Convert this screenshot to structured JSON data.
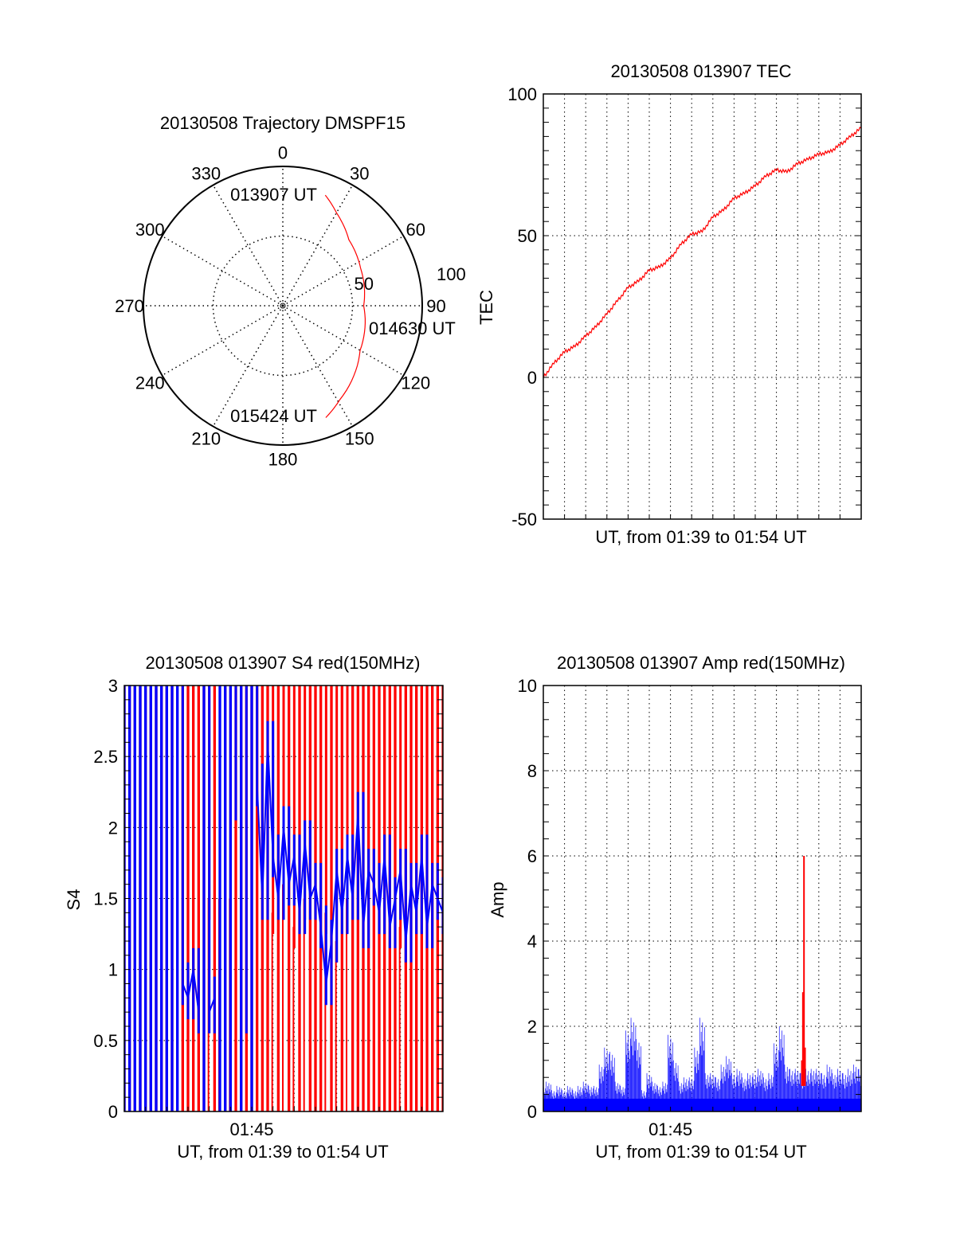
{
  "colors": {
    "red": "#ff0000",
    "blue": "#0000ff",
    "axis": "#000000"
  },
  "chart_data": [
    {
      "type": "polar",
      "title": "20130508 Trajectory DMSPF15",
      "angle_labels": [
        "0",
        "30",
        "60",
        "90",
        "120",
        "150",
        "180",
        "210",
        "240",
        "270",
        "300",
        "330"
      ],
      "angles": [
        0,
        30,
        60,
        90,
        120,
        150,
        180,
        210,
        240,
        270,
        300,
        330
      ],
      "radial_labels": [
        "50",
        "100"
      ],
      "radial_values": [
        50,
        100
      ],
      "rlim": [
        0,
        100
      ],
      "trajectory": {
        "azimuth": [
          21,
          30,
          45,
          64,
          90,
          120,
          149,
          159
        ],
        "radius": [
          85,
          77,
          67,
          62,
          58,
          64,
          79,
          86
        ]
      },
      "annotations": [
        "013907 UT",
        "014630 UT",
        "015424 UT"
      ]
    },
    {
      "type": "line",
      "title": "20130508 013907 TEC",
      "xlabel": "UT, from 01:39 to 01:54 UT",
      "ylabel": "TEC",
      "xlim": [
        0,
        15
      ],
      "ylim": [
        -50,
        100
      ],
      "yticks": [
        "-50",
        "0",
        "50",
        "100"
      ],
      "ytick_values": [
        -50,
        0,
        50,
        100
      ],
      "grid": true,
      "x_minutes": [
        0,
        0.5,
        1,
        1.5,
        2,
        2.5,
        3,
        3.5,
        4,
        4.5,
        5,
        5.5,
        6,
        6.5,
        7,
        7.5,
        8,
        8.5,
        9,
        9.5,
        10,
        10.5,
        11,
        11.5,
        12,
        12.5,
        13,
        13.5,
        14,
        14.5,
        15
      ],
      "series": [
        {
          "name": "TEC",
          "color": "#ff0000",
          "values": [
            0,
            5,
            9,
            11,
            14.6,
            18,
            22.4,
            27,
            31.7,
            34,
            37.8,
            39,
            42,
            47,
            50.5,
            51.5,
            56.6,
            59,
            63.2,
            65,
            67.6,
            71,
            73.2,
            72.5,
            75.4,
            77,
            78.7,
            79.5,
            82,
            85,
            88
          ]
        }
      ]
    },
    {
      "type": "line",
      "title": "20130508 013907 S4 red(150MHz)",
      "xlabel": "UT, from 01:39 to 01:54 UT",
      "ylabel": "S4",
      "xlim": [
        0,
        15
      ],
      "ylim": [
        0,
        3
      ],
      "xticks": [
        "01:45"
      ],
      "xtick_values": [
        6
      ],
      "yticks": [
        "0",
        "0.5",
        "1",
        "1.5",
        "2",
        "2.5",
        "3"
      ],
      "ytick_values": [
        0,
        0.5,
        1,
        1.5,
        2,
        2.5,
        3
      ],
      "grid": true,
      "sample_step_minutes": 0.25,
      "series": [
        {
          "name": "red",
          "color": "#ff0000",
          "values": [
            3.5,
            0,
            3.5,
            0,
            3.5,
            0,
            3.5,
            0,
            3.5,
            0,
            0,
            3.5,
            0,
            3.5,
            0,
            3.5,
            1.5,
            3.5,
            1.5,
            3.5,
            1.5,
            3.5,
            0,
            3.5,
            0,
            3.5,
            0,
            3.5,
            1.4,
            3.5,
            1.6,
            3.5,
            1.3,
            3.5,
            1.5,
            3.5,
            0,
            3.5,
            1.4,
            3.5,
            1.2,
            3.5,
            1.5,
            3.5,
            0,
            3.5,
            0,
            3.5,
            0,
            3.5,
            0,
            3.5,
            1.3,
            3.5,
            0,
            3.5,
            0,
            3.5,
            0,
            3.5,
            0
          ]
        },
        {
          "name": "blue",
          "color": "#0000ff",
          "values": [
            3.5,
            0,
            3.5,
            0,
            3.5,
            0,
            3.5,
            0,
            3.5,
            0,
            3.5,
            0.9,
            0.8,
            1.0,
            0.7,
            3.5,
            0.7,
            0.8,
            3.5,
            0,
            3.5,
            2.2,
            3.5,
            0.7,
            3.5,
            2.3,
            1.5,
            2.6,
            1.8,
            1.5,
            2.0,
            1.6,
            1.8,
            1.4,
            1.9,
            1.5,
            1.6,
            1.3,
            0.9,
            1.2,
            1.7,
            1.4,
            1.8,
            1.5,
            2.1,
            1.3,
            1.7,
            1.6,
            1.4,
            1.8,
            1.3,
            1.5,
            1.7,
            1.2,
            1.6,
            1.4,
            1.8,
            1.3,
            1.6,
            1.5,
            1.4
          ]
        }
      ]
    },
    {
      "type": "bar",
      "title": "20130508 013907 Amp red(150MHz)",
      "xlabel": "UT, from 01:39 to 01:54 UT",
      "ylabel": "Amp",
      "xlim": [
        0,
        15
      ],
      "ylim": [
        0,
        10
      ],
      "xticks": [
        "01:45"
      ],
      "xtick_values": [
        6
      ],
      "yticks": [
        "0",
        "2",
        "4",
        "6",
        "8",
        "10"
      ],
      "ytick_values": [
        0,
        2,
        4,
        6,
        8,
        10
      ],
      "grid": true,
      "sample_step_minutes": 0.25,
      "series": [
        {
          "name": "blue",
          "color": "#0000ff",
          "values": [
            0.6,
            0.7,
            0.5,
            0.6,
            0.5,
            0.6,
            0.5,
            0.6,
            0.7,
            0.6,
            0.6,
            1.1,
            1.5,
            1.4,
            0.7,
            0.6,
            1.9,
            2.2,
            1.7,
            0.5,
            0.9,
            0.7,
            0.6,
            0.7,
            1.8,
            1.2,
            0.7,
            0.8,
            0.8,
            1.5,
            2.2,
            0.9,
            0.9,
            0.8,
            1.1,
            1.3,
            0.9,
            1.0,
            0.8,
            0.9,
            0.9,
            1.0,
            0.8,
            0.9,
            1.6,
            2.0,
            1.1,
            1.0,
            1.0,
            0.9,
            1.0,
            1.0,
            1.0,
            0.9,
            1.1,
            0.9,
            1.0,
            0.9,
            1.0,
            1.1,
            1.0
          ]
        },
        {
          "name": "red",
          "color": "#ff0000",
          "x_minutes": [
            12.2,
            12.25,
            12.3,
            12.35
          ],
          "values": [
            1.2,
            2.8,
            6.0,
            1.5
          ]
        }
      ]
    }
  ]
}
